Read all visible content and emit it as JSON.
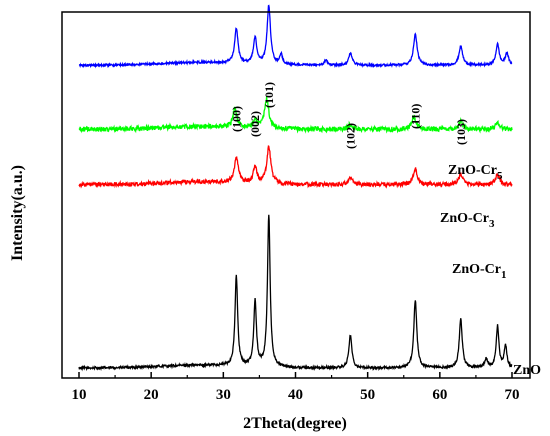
{
  "chart_data": {
    "type": "line",
    "title": "",
    "xlabel": "2Theta(degree)",
    "ylabel": "Intensity(a.u.)",
    "xlim": [
      10,
      70
    ],
    "xticks": [
      "10",
      "20",
      "30",
      "40",
      "50",
      "60",
      "70"
    ],
    "yticks_shown": false,
    "grid": false,
    "legend": "labels next to curves (right)",
    "peak_labels": [
      {
        "text": "(100)",
        "x": 31.8
      },
      {
        "text": "(002)",
        "x": 34.4
      },
      {
        "text": "(101)",
        "x": 36.3
      },
      {
        "text": "(102)",
        "x": 47.6
      },
      {
        "text": "(110)",
        "x": 56.6
      },
      {
        "text": "(103)",
        "x": 62.9
      }
    ],
    "series": [
      {
        "name_main": "ZnO",
        "name_sub": "",
        "color": "#000000",
        "baseline": 0.0,
        "noise": 0.35,
        "peaks": [
          [
            31.8,
            26,
            0.22
          ],
          [
            34.4,
            19,
            0.22
          ],
          [
            36.3,
            44,
            0.22
          ],
          [
            47.6,
            9.5,
            0.25
          ],
          [
            56.6,
            19.5,
            0.25
          ],
          [
            62.9,
            14,
            0.25
          ],
          [
            66.4,
            2.5,
            0.25
          ],
          [
            68.0,
            12,
            0.22
          ],
          [
            69.1,
            6.5,
            0.22
          ]
        ]
      },
      {
        "name_main": "ZnO-Cr",
        "name_sub": "1",
        "color": "#ff0000",
        "baseline": 53.0,
        "noise": 0.6,
        "peaks": [
          [
            31.8,
            7.5,
            0.32
          ],
          [
            34.4,
            4.5,
            0.32
          ],
          [
            36.3,
            10.5,
            0.35
          ],
          [
            47.6,
            1.8,
            0.35
          ],
          [
            56.6,
            4.5,
            0.35
          ],
          [
            62.9,
            3.0,
            0.35
          ],
          [
            68.0,
            2.8,
            0.35
          ]
        ]
      },
      {
        "name_main": "ZnO-Cr",
        "name_sub": "3",
        "color": "#00ff00",
        "baseline": 69.0,
        "noise": 0.7,
        "peaks": [
          [
            31.6,
            5.5,
            0.32
          ],
          [
            34.4,
            2.5,
            0.32
          ],
          [
            36.0,
            8.5,
            0.35
          ],
          [
            47.6,
            1.3,
            0.35
          ],
          [
            56.4,
            3.5,
            0.35
          ],
          [
            62.9,
            2.2,
            0.35
          ],
          [
            68.0,
            2.0,
            0.35
          ]
        ]
      },
      {
        "name_main": "ZnO-Cr",
        "name_sub": "5",
        "color": "#0000ff",
        "baseline": 87.5,
        "noise": 0.3,
        "peaks": [
          [
            31.8,
            10,
            0.28
          ],
          [
            34.4,
            7.5,
            0.28
          ],
          [
            36.3,
            17,
            0.28
          ],
          [
            38.0,
            3.0,
            0.22
          ],
          [
            44.2,
            1.5,
            0.22
          ],
          [
            47.6,
            3.5,
            0.3
          ],
          [
            56.6,
            9,
            0.3
          ],
          [
            62.9,
            5.5,
            0.3
          ],
          [
            68.0,
            6,
            0.28
          ],
          [
            69.3,
            3.5,
            0.25
          ]
        ]
      }
    ]
  }
}
